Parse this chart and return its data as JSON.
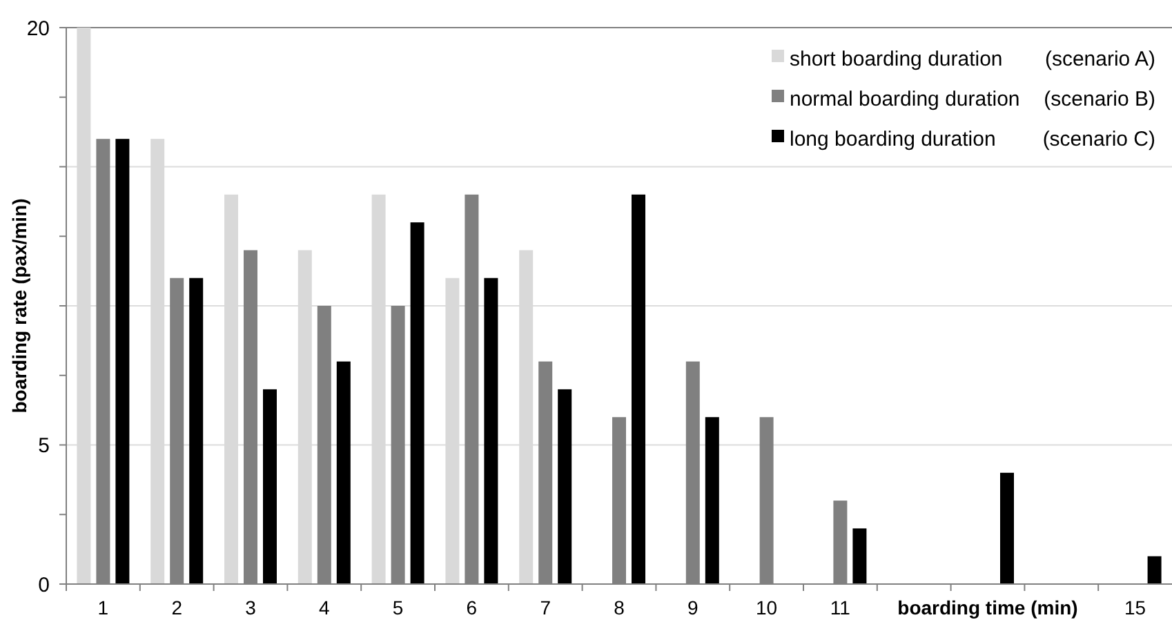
{
  "chart_data": {
    "type": "bar",
    "ylabel": "boarding rate (pax/min)",
    "xlabel": "boarding time (min)",
    "categories": [
      "1",
      "2",
      "3",
      "4",
      "5",
      "6",
      "7",
      "8",
      "9",
      "10",
      "11",
      null,
      null,
      null,
      "15"
    ],
    "series": [
      {
        "name": "short boarding duration (scenario A)",
        "color": "#d9d9d9",
        "values": [
          20,
          16,
          14,
          12,
          14,
          11,
          12,
          0,
          0,
          0,
          0,
          0,
          0,
          0,
          0
        ]
      },
      {
        "name": "normal boarding duration (scenario B)",
        "color": "#808080",
        "values": [
          16,
          11,
          12,
          10,
          10,
          14,
          8,
          6,
          8,
          6,
          3,
          0,
          0,
          0,
          0
        ]
      },
      {
        "name": "long boarding duration (scenario C)",
        "color": "#000000",
        "values": [
          16,
          11,
          7,
          8,
          13,
          11,
          7,
          14,
          6,
          0,
          2,
          0,
          4,
          0,
          1
        ]
      }
    ],
    "ylim": [
      0,
      20
    ],
    "yticks": [
      0,
      {
        "value": 2.5,
        "label": null
      },
      5,
      {
        "value": 7.5,
        "label": null
      },
      {
        "value": 10,
        "label": null
      },
      {
        "value": 12.5,
        "label": null
      },
      {
        "value": 15,
        "label": null
      },
      {
        "value": 17.5,
        "label": null
      },
      20
    ],
    "grid": "y",
    "legend": "top right"
  }
}
